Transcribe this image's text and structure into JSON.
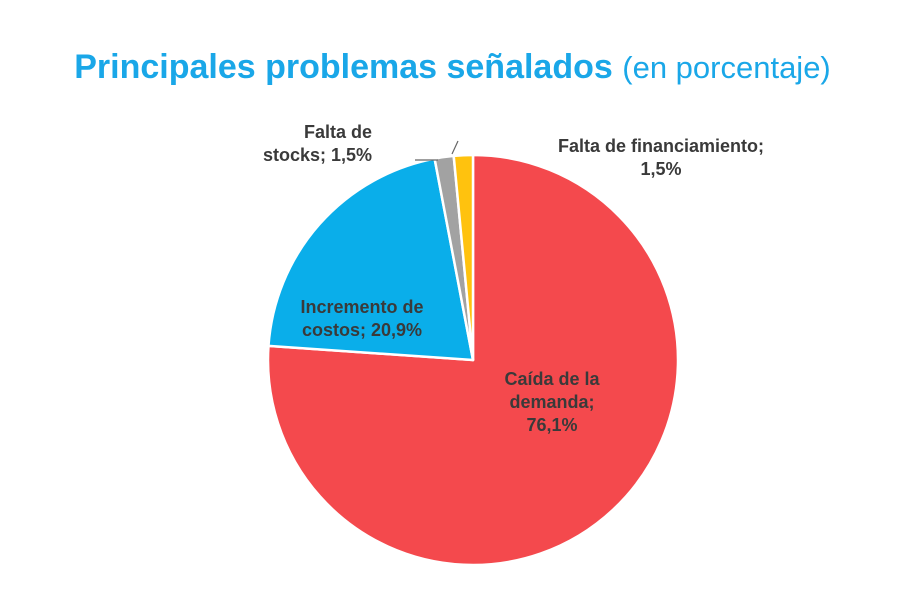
{
  "title": {
    "main": "Principales problemas señalados",
    "sub": "(en porcentaje)"
  },
  "chart_data": {
    "type": "pie",
    "title": "Principales problemas señalados (en porcentaje)",
    "slices": [
      {
        "category": "Caída de la demanda",
        "value": 76.1,
        "color": "#f4494d",
        "label_lines": [
          "Caída de la",
          "demanda;",
          "76,1%"
        ]
      },
      {
        "category": "Incremento de costos",
        "value": 20.9,
        "color": "#0aaeea",
        "label_lines": [
          "Incremento de",
          "costos; 20,9%"
        ]
      },
      {
        "category": "Falta de stocks",
        "value": 1.5,
        "color": "#a2a2a2",
        "label_lines": [
          "Falta de",
          "stocks; 1,5%"
        ]
      },
      {
        "category": "Falta de financiamiento",
        "value": 1.5,
        "color": "#ffc20e",
        "label_lines": [
          "Falta de financiamiento;",
          "1,5%"
        ]
      }
    ],
    "start_angle": "12 o'clock",
    "direction": "clockwise",
    "legend": "none"
  }
}
